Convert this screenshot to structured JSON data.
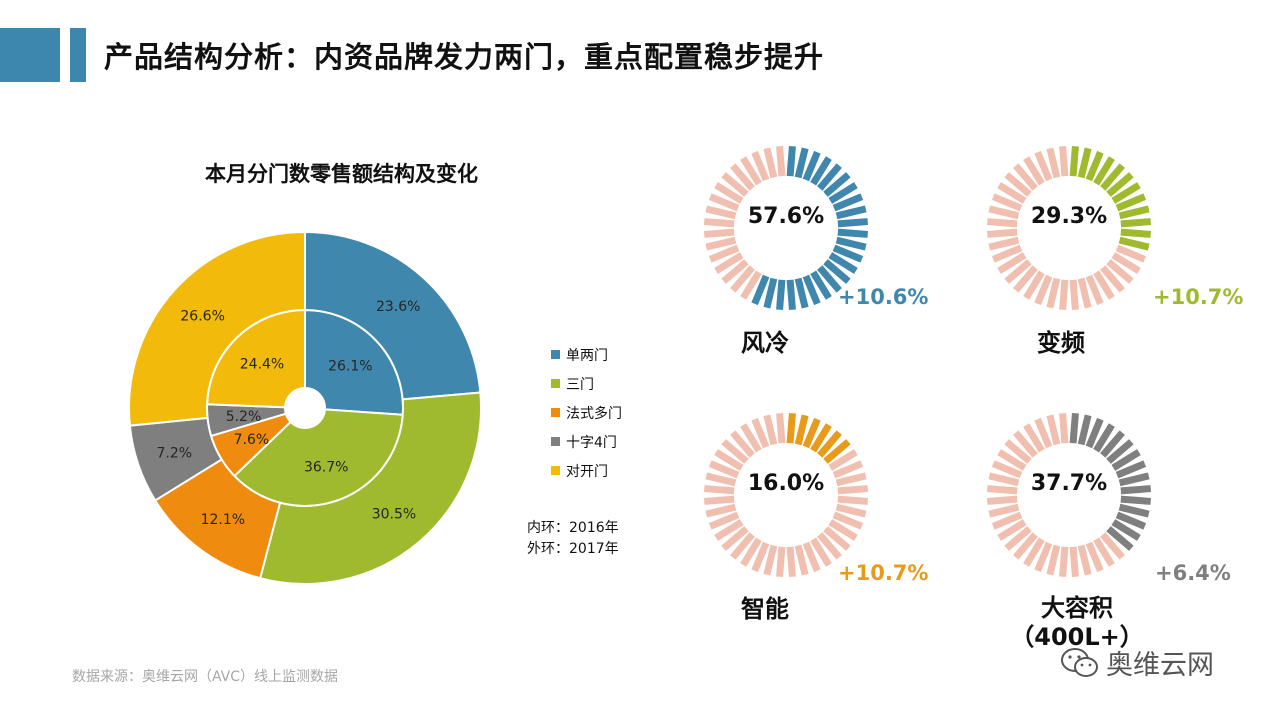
{
  "page": {
    "title": "产品结构分析：内资品牌发力两门，重点配置稳步提升",
    "accent_color": "#3d86ae",
    "source": "数据来源：奥维云网（AVC）线上监测数据",
    "watermark": "奥维云网",
    "watermark_icon": "wechat-icon"
  },
  "chart_data": [
    {
      "type": "donut",
      "title": "本月分门数零售额结构及变化",
      "categories": [
        "单两门",
        "三门",
        "法式多门",
        "十字4门",
        "对开门"
      ],
      "colors": [
        "#3f87ad",
        "#9fba2f",
        "#ef8c0f",
        "#7f7f7f",
        "#f2bb0c"
      ],
      "series": [
        {
          "name": "内环：2016年",
          "values": [
            26.1,
            36.7,
            7.6,
            5.2,
            24.4
          ],
          "labels": [
            "26.1%",
            "36.7%",
            "7.6%",
            "5.2%",
            "24.4%"
          ]
        },
        {
          "name": "外环：2017年",
          "values": [
            23.6,
            30.5,
            12.1,
            7.2,
            26.6
          ],
          "labels": [
            "23.6%",
            "30.5%",
            "12.1%",
            "7.2%",
            "26.6%"
          ]
        }
      ],
      "legend_position": "right"
    },
    {
      "type": "gauge",
      "items": [
        {
          "label": "风冷",
          "value": 57.6,
          "value_text": "57.6%",
          "change": "+10.6%",
          "color": "#3f87ad"
        },
        {
          "label": "变频",
          "value": 29.3,
          "value_text": "29.3%",
          "change": "+10.7%",
          "color": "#9fba2f"
        },
        {
          "label": "智能",
          "value": 16.0,
          "value_text": "16.0%",
          "change": "+10.7%",
          "color": "#e89a1b"
        },
        {
          "label": "大容积\n（400L+）",
          "value": 37.7,
          "value_text": "37.7%",
          "change": "+6.4%",
          "color": "#7f7f7f"
        }
      ],
      "base_color": "#f0bfb0"
    }
  ]
}
